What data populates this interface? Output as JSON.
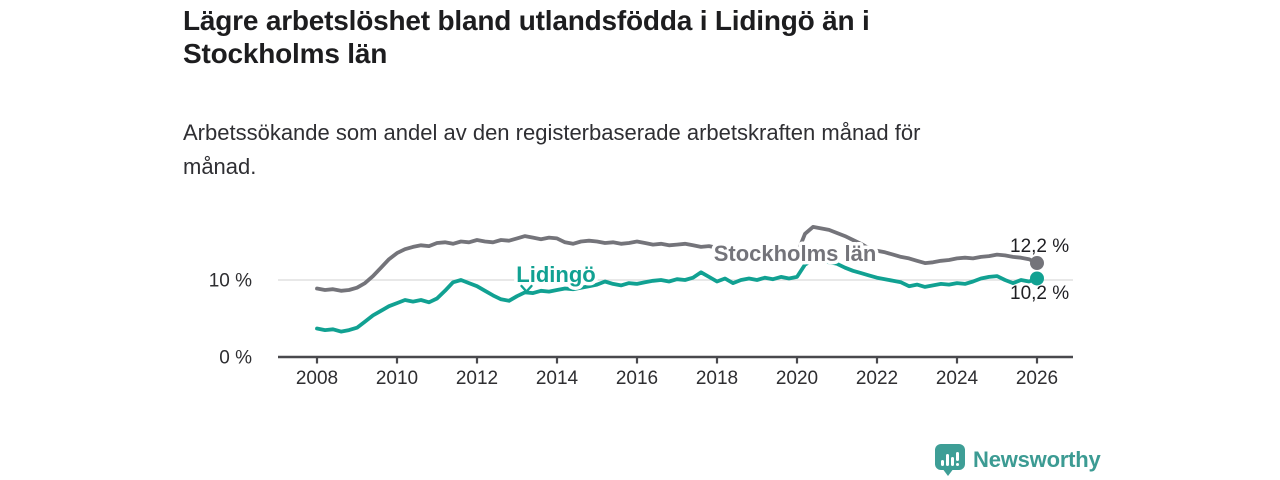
{
  "header": {
    "title_lines": [
      "Lägre arbetslöshet bland utlandsfödda i Lidingö än i",
      "Stockholms län"
    ],
    "subtitle_lines": [
      "Arbetssökande som andel av den registerbaserade arbetskraften månad för",
      "månad."
    ]
  },
  "chart_data": {
    "type": "line",
    "unit": "%",
    "x_start": 2008.0,
    "x_step": 0.2,
    "x_ticks": [
      "2008",
      "2010",
      "2012",
      "2014",
      "2016",
      "2018",
      "2020",
      "2022",
      "2024",
      "2026"
    ],
    "y_ticks": [
      {
        "value": 0,
        "label": "0 %"
      },
      {
        "value": 10,
        "label": "10 %"
      }
    ],
    "ylim": [
      0,
      17.5
    ],
    "grid_y": [
      10
    ],
    "legend_position": "inline-labels",
    "series": [
      {
        "name": "Stockholms län",
        "color": "#74747a",
        "end_label": "12,2 %",
        "end_value": 12.2,
        "values": [
          8.9,
          8.7,
          8.8,
          8.6,
          8.7,
          9.0,
          9.6,
          10.5,
          11.6,
          12.7,
          13.5,
          14.0,
          14.3,
          14.5,
          14.4,
          14.8,
          14.9,
          14.7,
          15.0,
          14.9,
          15.2,
          15.0,
          14.9,
          15.2,
          15.1,
          15.4,
          15.7,
          15.5,
          15.3,
          15.5,
          15.4,
          14.9,
          14.7,
          15.0,
          15.1,
          15.0,
          14.8,
          14.9,
          14.7,
          14.8,
          15.0,
          14.8,
          14.6,
          14.7,
          14.5,
          14.6,
          14.7,
          14.5,
          14.3,
          14.4,
          14.2,
          14.0,
          14.1,
          13.9,
          13.8,
          13.7,
          13.5,
          13.4,
          13.3,
          13.2,
          13.4,
          16.0,
          16.9,
          16.7,
          16.5,
          16.1,
          15.7,
          15.2,
          14.7,
          14.1,
          13.8,
          13.6,
          13.3,
          13.0,
          12.8,
          12.5,
          12.2,
          12.3,
          12.5,
          12.6,
          12.8,
          12.9,
          12.8,
          13.0,
          13.1,
          13.3,
          13.2,
          13.0,
          12.9,
          12.7,
          12.2
        ]
      },
      {
        "name": "Lidingö",
        "color": "#11a192",
        "end_label": "10,2 %",
        "end_value": 10.2,
        "values": [
          3.7,
          3.5,
          3.6,
          3.3,
          3.5,
          3.8,
          4.6,
          5.4,
          6.0,
          6.6,
          7.0,
          7.4,
          7.2,
          7.4,
          7.1,
          7.6,
          8.6,
          9.7,
          10.0,
          9.6,
          9.2,
          8.6,
          8.0,
          7.5,
          7.3,
          7.9,
          8.4,
          8.3,
          8.6,
          8.5,
          8.7,
          8.9,
          8.8,
          9.0,
          9.2,
          9.4,
          9.8,
          9.5,
          9.3,
          9.6,
          9.5,
          9.7,
          9.9,
          10.0,
          9.8,
          10.1,
          10.0,
          10.3,
          11.0,
          10.4,
          9.8,
          10.2,
          9.6,
          10.0,
          10.2,
          10.0,
          10.3,
          10.1,
          10.4,
          10.2,
          10.4,
          12.0,
          12.6,
          12.5,
          12.3,
          12.1,
          11.6,
          11.2,
          10.9,
          10.6,
          10.3,
          10.1,
          9.9,
          9.7,
          9.2,
          9.4,
          9.1,
          9.3,
          9.5,
          9.4,
          9.6,
          9.5,
          9.8,
          10.2,
          10.4,
          10.5,
          10.0,
          9.6,
          10.0,
          9.8,
          10.2
        ]
      }
    ]
  },
  "footer": {
    "brand": "Newsworthy",
    "brand_color": "#3c9b93",
    "icon": "newsworthy-bar-chart-bubble-icon"
  }
}
